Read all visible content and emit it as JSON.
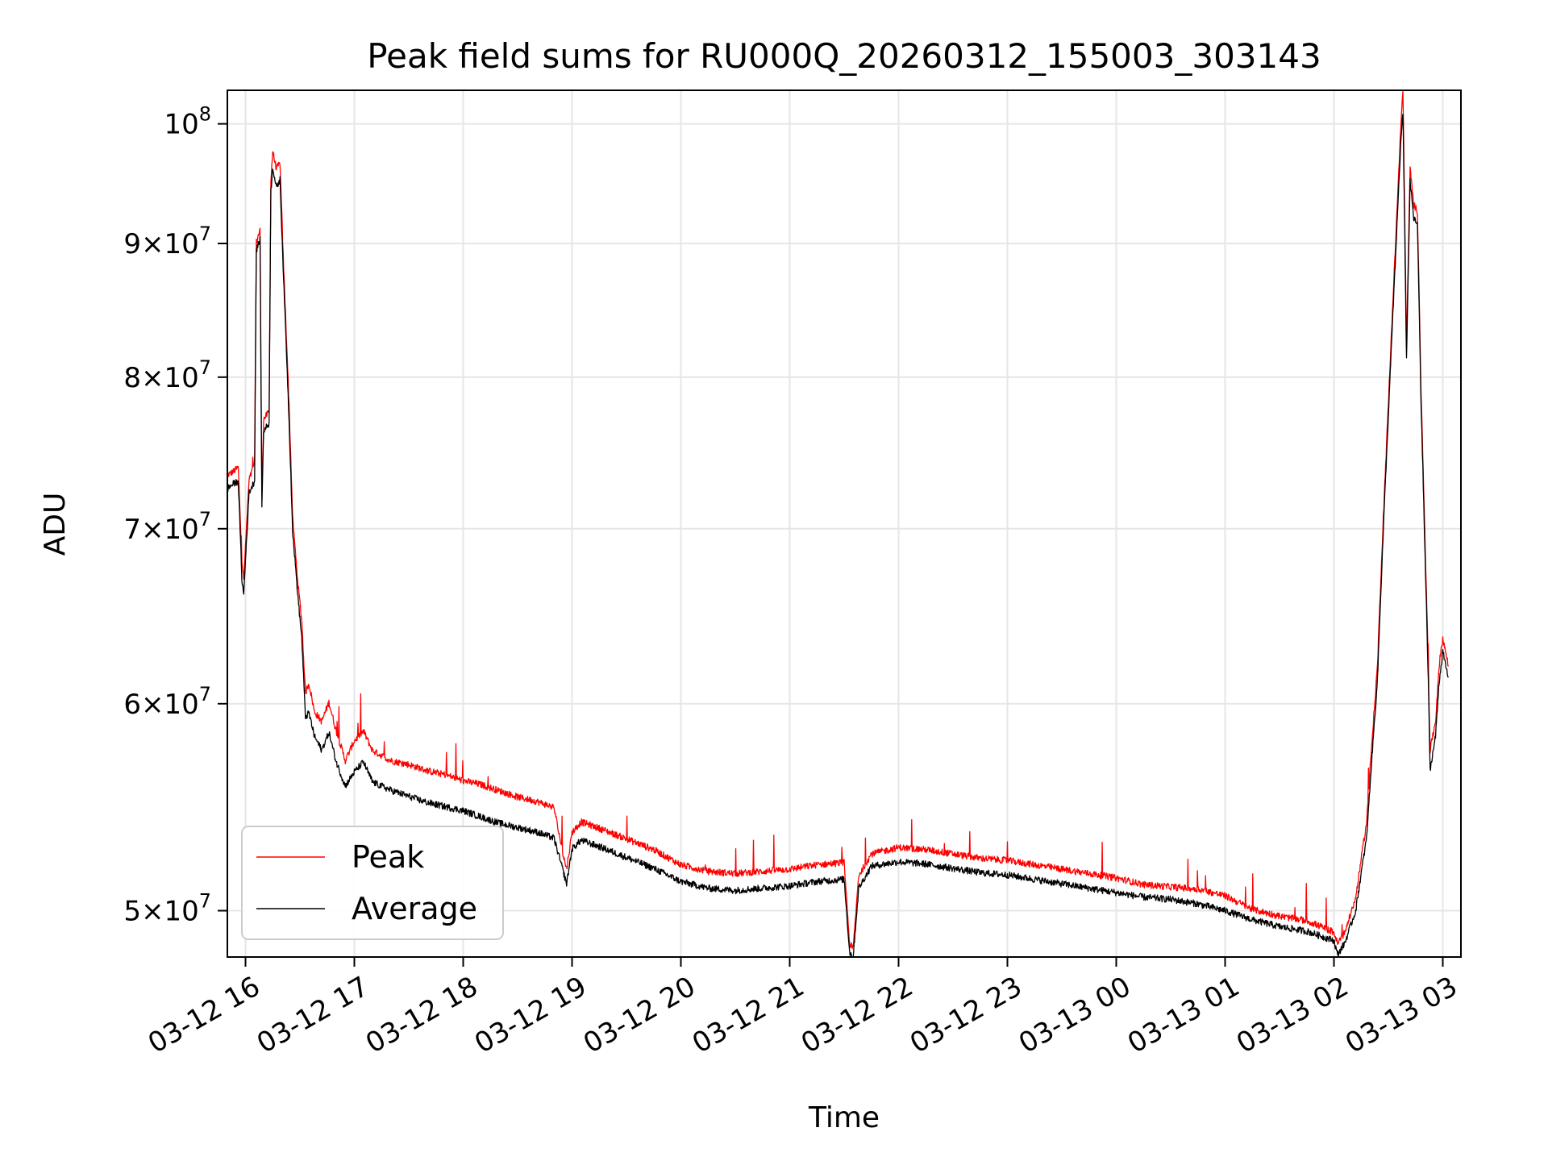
{
  "chart_data": {
    "type": "line",
    "title": "Peak field sums for RU000Q_20260312_155003_303143",
    "xlabel": "Time",
    "ylabel": "ADU",
    "x_scale": "time",
    "y_scale": "log",
    "xlim": [
      "2026-03-12T15:50",
      "2026-03-13T03:10"
    ],
    "ylim": [
      48000000.0,
      103000000.0
    ],
    "grid": true,
    "legend_position": "lower-left",
    "x_ticks": [
      {
        "t": "2026-03-12T16:00",
        "label": "03-12 16"
      },
      {
        "t": "2026-03-12T17:00",
        "label": "03-12 17"
      },
      {
        "t": "2026-03-12T18:00",
        "label": "03-12 18"
      },
      {
        "t": "2026-03-12T19:00",
        "label": "03-12 19"
      },
      {
        "t": "2026-03-12T20:00",
        "label": "03-12 20"
      },
      {
        "t": "2026-03-12T21:00",
        "label": "03-12 21"
      },
      {
        "t": "2026-03-12T22:00",
        "label": "03-12 22"
      },
      {
        "t": "2026-03-12T23:00",
        "label": "03-12 23"
      },
      {
        "t": "2026-03-13T00:00",
        "label": "03-13 00"
      },
      {
        "t": "2026-03-13T01:00",
        "label": "03-13 01"
      },
      {
        "t": "2026-03-13T02:00",
        "label": "03-13 02"
      },
      {
        "t": "2026-03-13T03:00",
        "label": "03-13 03"
      }
    ],
    "y_ticks": [
      {
        "value": 50000000.0,
        "mant": "5",
        "exp": "7"
      },
      {
        "value": 60000000.0,
        "mant": "6",
        "exp": "7"
      },
      {
        "value": 70000000.0,
        "mant": "7",
        "exp": "7"
      },
      {
        "value": 80000000.0,
        "mant": "8",
        "exp": "7"
      },
      {
        "value": 90000000.0,
        "mant": "9",
        "exp": "7"
      },
      {
        "value": 100000000.0,
        "mant": "",
        "exp": "8"
      }
    ],
    "series": [
      {
        "name": "Peak",
        "color": "#ff0000",
        "points": [
          [
            "2026-03-12T15:50",
            73.3
          ],
          [
            "2026-03-12T15:53",
            73.5
          ],
          [
            "2026-03-12T15:56",
            73.8
          ],
          [
            "2026-03-12T15:58",
            68.0
          ],
          [
            "2026-03-12T15:59",
            66.8
          ],
          [
            "2026-03-12T16:02",
            73.0
          ],
          [
            "2026-03-12T16:05",
            74.0
          ],
          [
            "2026-03-12T16:06",
            90.0
          ],
          [
            "2026-03-12T16:08",
            91.0
          ],
          [
            "2026-03-12T16:09",
            72.0
          ],
          [
            "2026-03-12T16:10",
            77.0
          ],
          [
            "2026-03-12T16:13",
            77.5
          ],
          [
            "2026-03-12T16:14",
            95.0
          ],
          [
            "2026-03-12T16:15",
            97.5
          ],
          [
            "2026-03-12T16:17",
            96.0
          ],
          [
            "2026-03-12T16:19",
            96.5
          ],
          [
            "2026-03-12T16:21",
            88.0
          ],
          [
            "2026-03-12T16:24",
            78.0
          ],
          [
            "2026-03-12T16:26",
            70.5
          ],
          [
            "2026-03-12T16:29",
            66.5
          ],
          [
            "2026-03-12T16:31",
            64.5
          ],
          [
            "2026-03-12T16:33",
            60.5
          ],
          [
            "2026-03-12T16:35",
            61.0
          ],
          [
            "2026-03-12T16:38",
            59.5
          ],
          [
            "2026-03-12T16:42",
            59.0
          ],
          [
            "2026-03-12T16:46",
            60.0
          ],
          [
            "2026-03-12T16:50",
            58.5
          ],
          [
            "2026-03-12T16:55",
            57.0
          ],
          [
            "2026-03-12T17:00",
            58.0
          ],
          [
            "2026-03-12T17:05",
            58.5
          ],
          [
            "2026-03-12T17:10",
            57.5
          ],
          [
            "2026-03-12T17:20",
            57.0
          ],
          [
            "2026-03-12T17:30",
            56.8
          ],
          [
            "2026-03-12T17:40",
            56.5
          ],
          [
            "2026-03-12T17:50",
            56.3
          ],
          [
            "2026-03-12T18:00",
            56.0
          ],
          [
            "2026-03-12T18:10",
            55.8
          ],
          [
            "2026-03-12T18:20",
            55.5
          ],
          [
            "2026-03-12T18:30",
            55.2
          ],
          [
            "2026-03-12T18:40",
            55.0
          ],
          [
            "2026-03-12T18:50",
            54.7
          ],
          [
            "2026-03-12T18:55",
            52.5
          ],
          [
            "2026-03-12T18:57",
            51.8
          ],
          [
            "2026-03-12T19:00",
            53.5
          ],
          [
            "2026-03-12T19:05",
            54.0
          ],
          [
            "2026-03-12T19:15",
            53.7
          ],
          [
            "2026-03-12T19:30",
            53.2
          ],
          [
            "2026-03-12T19:45",
            52.7
          ],
          [
            "2026-03-12T20:00",
            52.0
          ],
          [
            "2026-03-12T20:15",
            51.7
          ],
          [
            "2026-03-12T20:30",
            51.6
          ],
          [
            "2026-03-12T20:45",
            51.7
          ],
          [
            "2026-03-12T21:00",
            51.8
          ],
          [
            "2026-03-12T21:15",
            52.0
          ],
          [
            "2026-03-12T21:30",
            52.1
          ],
          [
            "2026-03-12T21:33",
            48.5
          ],
          [
            "2026-03-12T21:35",
            48.3
          ],
          [
            "2026-03-12T21:38",
            51.5
          ],
          [
            "2026-03-12T21:45",
            52.5
          ],
          [
            "2026-03-12T22:00",
            52.8
          ],
          [
            "2026-03-12T22:15",
            52.7
          ],
          [
            "2026-03-12T22:30",
            52.5
          ],
          [
            "2026-03-12T22:45",
            52.3
          ],
          [
            "2026-03-12T23:00",
            52.2
          ],
          [
            "2026-03-12T23:15",
            52.0
          ],
          [
            "2026-03-12T23:30",
            51.8
          ],
          [
            "2026-03-12T23:45",
            51.6
          ],
          [
            "2026-03-13T00:00",
            51.4
          ],
          [
            "2026-03-13T00:15",
            51.1
          ],
          [
            "2026-03-13T00:30",
            51.0
          ],
          [
            "2026-03-13T00:45",
            50.9
          ],
          [
            "2026-03-13T01:00",
            50.6
          ],
          [
            "2026-03-13T01:15",
            50.0
          ],
          [
            "2026-03-13T01:30",
            49.7
          ],
          [
            "2026-03-13T01:45",
            49.5
          ],
          [
            "2026-03-13T02:00",
            49.0
          ],
          [
            "2026-03-13T02:02",
            48.5
          ],
          [
            "2026-03-13T02:06",
            49.0
          ],
          [
            "2026-03-13T02:12",
            50.5
          ],
          [
            "2026-03-13T02:18",
            54.0
          ],
          [
            "2026-03-13T02:24",
            62.0
          ],
          [
            "2026-03-13T02:30",
            78.0
          ],
          [
            "2026-03-13T02:34",
            90.0
          ],
          [
            "2026-03-13T02:37",
            100.0
          ],
          [
            "2026-03-13T02:38",
            103.0
          ],
          [
            "2026-03-13T02:40",
            82.0
          ],
          [
            "2026-03-13T02:42",
            96.0
          ],
          [
            "2026-03-13T02:44",
            93.0
          ],
          [
            "2026-03-13T02:46",
            92.5
          ],
          [
            "2026-03-13T02:48",
            79.0
          ],
          [
            "2026-03-13T02:50",
            70.0
          ],
          [
            "2026-03-13T02:52",
            62.0
          ],
          [
            "2026-03-13T02:53",
            57.5
          ],
          [
            "2026-03-13T02:56",
            59.0
          ],
          [
            "2026-03-13T02:58",
            62.0
          ],
          [
            "2026-03-13T03:00",
            63.5
          ],
          [
            "2026-03-13T03:03",
            62.0
          ]
        ]
      },
      {
        "name": "Average",
        "color": "#000000",
        "points": [
          [
            "2026-03-12T15:50",
            72.5
          ],
          [
            "2026-03-12T15:53",
            72.8
          ],
          [
            "2026-03-12T15:56",
            73.0
          ],
          [
            "2026-03-12T15:58",
            67.0
          ],
          [
            "2026-03-12T15:59",
            66.0
          ],
          [
            "2026-03-12T16:02",
            72.3
          ],
          [
            "2026-03-12T16:05",
            73.0
          ],
          [
            "2026-03-12T16:06",
            89.5
          ],
          [
            "2026-03-12T16:08",
            90.3
          ],
          [
            "2026-03-12T16:09",
            71.2
          ],
          [
            "2026-03-12T16:10",
            76.3
          ],
          [
            "2026-03-12T16:13",
            76.8
          ],
          [
            "2026-03-12T16:14",
            94.3
          ],
          [
            "2026-03-12T16:15",
            96.3
          ],
          [
            "2026-03-12T16:17",
            94.5
          ],
          [
            "2026-03-12T16:19",
            95.2
          ],
          [
            "2026-03-12T16:21",
            87.2
          ],
          [
            "2026-03-12T16:24",
            77.0
          ],
          [
            "2026-03-12T16:26",
            69.8
          ],
          [
            "2026-03-12T16:29",
            65.8
          ],
          [
            "2026-03-12T16:31",
            63.6
          ],
          [
            "2026-03-12T16:33",
            59.3
          ],
          [
            "2026-03-12T16:35",
            59.5
          ],
          [
            "2026-03-12T16:38",
            58.3
          ],
          [
            "2026-03-12T16:42",
            57.6
          ],
          [
            "2026-03-12T16:46",
            58.5
          ],
          [
            "2026-03-12T16:50",
            57.0
          ],
          [
            "2026-03-12T16:55",
            55.8
          ],
          [
            "2026-03-12T17:00",
            56.5
          ],
          [
            "2026-03-12T17:05",
            57.0
          ],
          [
            "2026-03-12T17:10",
            56.0
          ],
          [
            "2026-03-12T17:20",
            55.6
          ],
          [
            "2026-03-12T17:30",
            55.3
          ],
          [
            "2026-03-12T17:40",
            55.0
          ],
          [
            "2026-03-12T17:50",
            54.8
          ],
          [
            "2026-03-12T18:00",
            54.6
          ],
          [
            "2026-03-12T18:10",
            54.3
          ],
          [
            "2026-03-12T18:20",
            54.0
          ],
          [
            "2026-03-12T18:30",
            53.8
          ],
          [
            "2026-03-12T18:40",
            53.6
          ],
          [
            "2026-03-12T18:50",
            53.3
          ],
          [
            "2026-03-12T18:55",
            51.8
          ],
          [
            "2026-03-12T18:57",
            51.2
          ],
          [
            "2026-03-12T19:00",
            52.8
          ],
          [
            "2026-03-12T19:05",
            53.2
          ],
          [
            "2026-03-12T19:15",
            52.9
          ],
          [
            "2026-03-12T19:30",
            52.4
          ],
          [
            "2026-03-12T19:45",
            51.9
          ],
          [
            "2026-03-12T20:00",
            51.3
          ],
          [
            "2026-03-12T20:15",
            51.0
          ],
          [
            "2026-03-12T20:30",
            50.9
          ],
          [
            "2026-03-12T20:45",
            51.0
          ],
          [
            "2026-03-12T21:00",
            51.1
          ],
          [
            "2026-03-12T21:15",
            51.3
          ],
          [
            "2026-03-12T21:30",
            51.4
          ],
          [
            "2026-03-12T21:33",
            48.2
          ],
          [
            "2026-03-12T21:35",
            48.0
          ],
          [
            "2026-03-12T21:38",
            51.0
          ],
          [
            "2026-03-12T21:45",
            52.0
          ],
          [
            "2026-03-12T22:00",
            52.2
          ],
          [
            "2026-03-12T22:15",
            52.1
          ],
          [
            "2026-03-12T22:30",
            51.9
          ],
          [
            "2026-03-12T22:45",
            51.7
          ],
          [
            "2026-03-12T23:00",
            51.6
          ],
          [
            "2026-03-12T23:15",
            51.4
          ],
          [
            "2026-03-12T23:30",
            51.2
          ],
          [
            "2026-03-12T23:45",
            51.0
          ],
          [
            "2026-03-13T00:00",
            50.8
          ],
          [
            "2026-03-13T00:15",
            50.6
          ],
          [
            "2026-03-13T00:30",
            50.5
          ],
          [
            "2026-03-13T00:45",
            50.3
          ],
          [
            "2026-03-13T01:00",
            50.0
          ],
          [
            "2026-03-13T01:15",
            49.6
          ],
          [
            "2026-03-13T01:30",
            49.3
          ],
          [
            "2026-03-13T01:45",
            49.1
          ],
          [
            "2026-03-13T02:00",
            48.7
          ],
          [
            "2026-03-13T02:02",
            48.1
          ],
          [
            "2026-03-13T02:06",
            48.6
          ],
          [
            "2026-03-13T02:12",
            50.0
          ],
          [
            "2026-03-13T02:18",
            53.3
          ],
          [
            "2026-03-13T02:24",
            61.3
          ],
          [
            "2026-03-13T02:30",
            77.3
          ],
          [
            "2026-03-13T02:34",
            89.0
          ],
          [
            "2026-03-13T02:37",
            98.8
          ],
          [
            "2026-03-13T02:38",
            101.0
          ],
          [
            "2026-03-13T02:40",
            81.2
          ],
          [
            "2026-03-13T02:42",
            95.0
          ],
          [
            "2026-03-13T02:44",
            92.0
          ],
          [
            "2026-03-13T02:46",
            91.5
          ],
          [
            "2026-03-13T02:48",
            78.3
          ],
          [
            "2026-03-13T02:50",
            69.3
          ],
          [
            "2026-03-13T02:52",
            61.2
          ],
          [
            "2026-03-13T02:53",
            56.6
          ],
          [
            "2026-03-13T02:56",
            58.3
          ],
          [
            "2026-03-13T02:58",
            61.2
          ],
          [
            "2026-03-13T03:00",
            62.8
          ],
          [
            "2026-03-13T03:03",
            61.4
          ]
        ]
      }
    ]
  }
}
